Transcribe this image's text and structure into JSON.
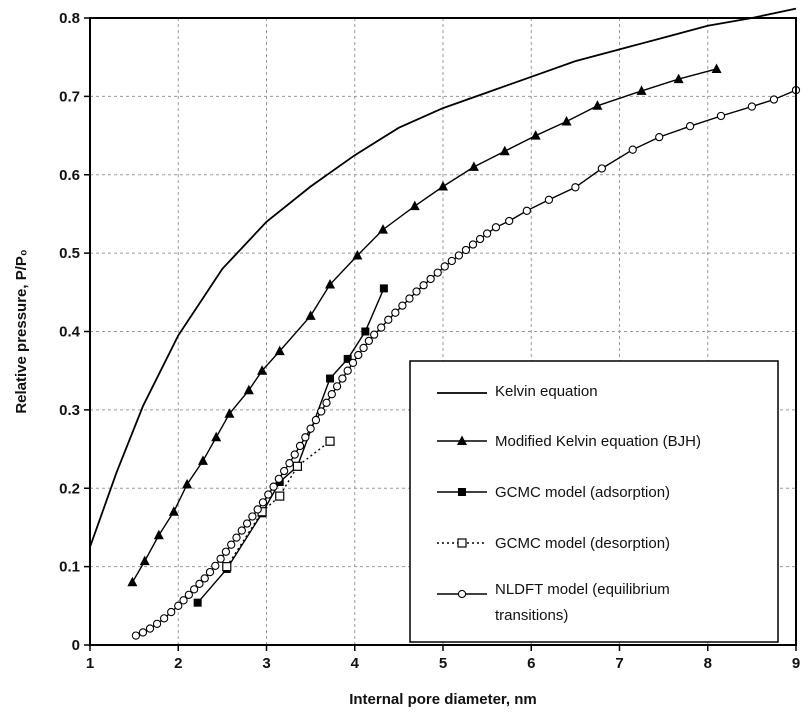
{
  "chart_data": {
    "type": "line",
    "xlabel": "Internal pore diameter, nm",
    "ylabel": "Relative pressure, P/P₀",
    "xlim": [
      1,
      9
    ],
    "ylim": [
      0,
      0.8
    ],
    "x_ticks": [
      "1",
      "2",
      "3",
      "4",
      "5",
      "6",
      "7",
      "8",
      "9"
    ],
    "y_ticks": [
      "0",
      "0.1",
      "0.2",
      "0.3",
      "0.4",
      "0.5",
      "0.6",
      "0.7",
      "0.8"
    ],
    "grid": "dashed",
    "legend_position": "bottom-right",
    "series": [
      {
        "name": "Kelvin equation",
        "marker": "none",
        "line": "solid",
        "points": [
          [
            1.0,
            0.125
          ],
          [
            1.3,
            0.22
          ],
          [
            1.6,
            0.305
          ],
          [
            2.0,
            0.395
          ],
          [
            2.5,
            0.48
          ],
          [
            3.0,
            0.54
          ],
          [
            3.5,
            0.585
          ],
          [
            4.0,
            0.625
          ],
          [
            4.5,
            0.66
          ],
          [
            5.0,
            0.685
          ],
          [
            5.5,
            0.705
          ],
          [
            6.0,
            0.725
          ],
          [
            6.5,
            0.745
          ],
          [
            7.0,
            0.76
          ],
          [
            7.5,
            0.775
          ],
          [
            8.0,
            0.79
          ],
          [
            8.5,
            0.8
          ],
          [
            9.0,
            0.812
          ]
        ]
      },
      {
        "name": "Modified Kelvin equation (BJH)",
        "marker": "filled-triangle",
        "line": "solid",
        "points": [
          [
            1.48,
            0.08
          ],
          [
            1.62,
            0.107
          ],
          [
            1.78,
            0.14
          ],
          [
            1.95,
            0.17
          ],
          [
            2.1,
            0.205
          ],
          [
            2.28,
            0.235
          ],
          [
            2.43,
            0.265
          ],
          [
            2.58,
            0.295
          ],
          [
            2.8,
            0.325
          ],
          [
            2.95,
            0.35
          ],
          [
            3.15,
            0.375
          ],
          [
            3.5,
            0.42
          ],
          [
            3.72,
            0.46
          ],
          [
            4.03,
            0.497
          ],
          [
            4.32,
            0.53
          ],
          [
            4.68,
            0.56
          ],
          [
            5.0,
            0.585
          ],
          [
            5.35,
            0.61
          ],
          [
            5.7,
            0.63
          ],
          [
            6.05,
            0.65
          ],
          [
            6.4,
            0.668
          ],
          [
            6.75,
            0.688
          ],
          [
            7.25,
            0.707
          ],
          [
            7.67,
            0.722
          ],
          [
            8.1,
            0.735
          ]
        ]
      },
      {
        "name": "GCMC model (adsorption)",
        "marker": "filled-square",
        "line": "solid",
        "points": [
          [
            2.22,
            0.054
          ],
          [
            2.55,
            0.097
          ],
          [
            2.95,
            0.168
          ],
          [
            3.15,
            0.208
          ],
          [
            3.35,
            0.228
          ],
          [
            3.72,
            0.34
          ],
          [
            3.92,
            0.365
          ],
          [
            4.12,
            0.4
          ],
          [
            4.33,
            0.455
          ]
        ]
      },
      {
        "name": "GCMC model (desorption)",
        "marker": "open-square",
        "line": "dotted",
        "points": [
          [
            2.55,
            0.1
          ],
          [
            2.95,
            0.17
          ],
          [
            3.15,
            0.19
          ],
          [
            3.35,
            0.228
          ],
          [
            3.72,
            0.26
          ]
        ]
      },
      {
        "name": "NLDFT model (equilibrium transitions)",
        "marker": "open-circle",
        "line": "solid",
        "points": [
          [
            1.52,
            0.012
          ],
          [
            1.6,
            0.016
          ],
          [
            1.68,
            0.021
          ],
          [
            1.76,
            0.027
          ],
          [
            1.84,
            0.034
          ],
          [
            1.92,
            0.042
          ],
          [
            2.0,
            0.05
          ],
          [
            2.06,
            0.057
          ],
          [
            2.12,
            0.064
          ],
          [
            2.18,
            0.071
          ],
          [
            2.24,
            0.078
          ],
          [
            2.3,
            0.085
          ],
          [
            2.36,
            0.093
          ],
          [
            2.42,
            0.101
          ],
          [
            2.48,
            0.11
          ],
          [
            2.54,
            0.119
          ],
          [
            2.6,
            0.128
          ],
          [
            2.66,
            0.137
          ],
          [
            2.72,
            0.146
          ],
          [
            2.78,
            0.155
          ],
          [
            2.84,
            0.164
          ],
          [
            2.9,
            0.173
          ],
          [
            2.96,
            0.182
          ],
          [
            3.02,
            0.192
          ],
          [
            3.08,
            0.202
          ],
          [
            3.14,
            0.212
          ],
          [
            3.2,
            0.222
          ],
          [
            3.26,
            0.232
          ],
          [
            3.32,
            0.243
          ],
          [
            3.38,
            0.254
          ],
          [
            3.44,
            0.265
          ],
          [
            3.5,
            0.276
          ],
          [
            3.56,
            0.287
          ],
          [
            3.62,
            0.298
          ],
          [
            3.68,
            0.309
          ],
          [
            3.74,
            0.32
          ],
          [
            3.8,
            0.33
          ],
          [
            3.86,
            0.34
          ],
          [
            3.92,
            0.35
          ],
          [
            3.98,
            0.36
          ],
          [
            4.04,
            0.37
          ],
          [
            4.1,
            0.379
          ],
          [
            4.16,
            0.388
          ],
          [
            4.22,
            0.396
          ],
          [
            4.3,
            0.405
          ],
          [
            4.38,
            0.415
          ],
          [
            4.46,
            0.424
          ],
          [
            4.54,
            0.433
          ],
          [
            4.62,
            0.442
          ],
          [
            4.7,
            0.451
          ],
          [
            4.78,
            0.459
          ],
          [
            4.86,
            0.467
          ],
          [
            4.94,
            0.475
          ],
          [
            5.02,
            0.483
          ],
          [
            5.1,
            0.49
          ],
          [
            5.18,
            0.497
          ],
          [
            5.26,
            0.504
          ],
          [
            5.34,
            0.511
          ],
          [
            5.42,
            0.518
          ],
          [
            5.5,
            0.525
          ],
          [
            5.6,
            0.533
          ],
          [
            5.75,
            0.541
          ],
          [
            5.95,
            0.554
          ],
          [
            6.2,
            0.568
          ],
          [
            6.5,
            0.584
          ],
          [
            6.8,
            0.608
          ],
          [
            7.15,
            0.632
          ],
          [
            7.45,
            0.648
          ],
          [
            7.8,
            0.662
          ],
          [
            8.15,
            0.675
          ],
          [
            8.5,
            0.687
          ],
          [
            8.75,
            0.696
          ],
          [
            9.0,
            0.708
          ]
        ]
      }
    ],
    "legend": [
      "Kelvin equation",
      "Modified Kelvin equation (BJH)",
      "GCMC model (adsorption)",
      "GCMC model (desorption)",
      "NLDFT model (equilibrium",
      "transitions)"
    ]
  }
}
